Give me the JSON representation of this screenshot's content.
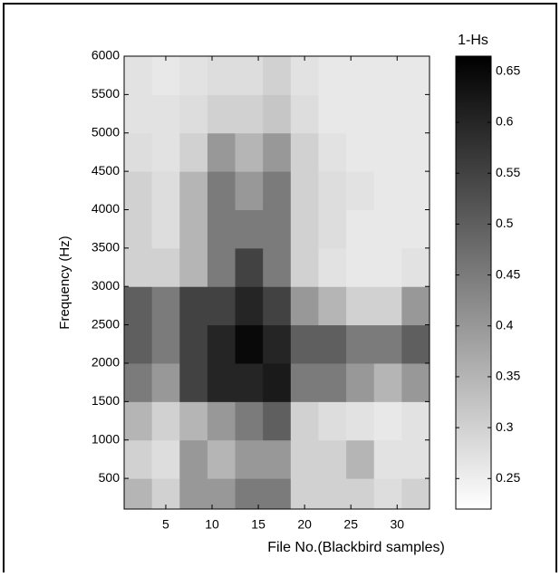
{
  "chart_data": {
    "type": "heatmap",
    "xlabel": "File No.(Blackbird samples)",
    "ylabel": "Frequency (Hz)",
    "colorbar_title": "1-Hs",
    "x": [
      2,
      5,
      8,
      11,
      14,
      17,
      20,
      23,
      26,
      29,
      32
    ],
    "y": [
      250,
      750,
      1250,
      1750,
      2250,
      2750,
      3250,
      3750,
      4250,
      4750,
      5250,
      5750
    ],
    "z": [
      [
        0.35,
        0.3,
        0.4,
        0.4,
        0.45,
        0.45,
        0.3,
        0.3,
        0.3,
        0.28,
        0.3
      ],
      [
        0.3,
        0.28,
        0.4,
        0.35,
        0.4,
        0.4,
        0.3,
        0.3,
        0.35,
        0.27,
        0.27
      ],
      [
        0.35,
        0.3,
        0.35,
        0.4,
        0.45,
        0.5,
        0.3,
        0.28,
        0.27,
        0.26,
        0.27
      ],
      [
        0.45,
        0.4,
        0.55,
        0.6,
        0.6,
        0.62,
        0.45,
        0.45,
        0.4,
        0.35,
        0.4
      ],
      [
        0.5,
        0.45,
        0.55,
        0.6,
        0.65,
        0.6,
        0.5,
        0.5,
        0.45,
        0.45,
        0.5
      ],
      [
        0.5,
        0.45,
        0.55,
        0.55,
        0.6,
        0.55,
        0.4,
        0.35,
        0.3,
        0.3,
        0.4
      ],
      [
        0.3,
        0.3,
        0.35,
        0.45,
        0.55,
        0.45,
        0.3,
        0.27,
        0.26,
        0.26,
        0.27
      ],
      [
        0.3,
        0.28,
        0.35,
        0.45,
        0.45,
        0.45,
        0.3,
        0.28,
        0.26,
        0.26,
        0.26
      ],
      [
        0.3,
        0.28,
        0.35,
        0.45,
        0.4,
        0.45,
        0.3,
        0.28,
        0.27,
        0.26,
        0.26
      ],
      [
        0.28,
        0.27,
        0.3,
        0.4,
        0.35,
        0.4,
        0.3,
        0.27,
        0.26,
        0.26,
        0.26
      ],
      [
        0.27,
        0.27,
        0.28,
        0.3,
        0.3,
        0.32,
        0.28,
        0.26,
        0.26,
        0.26,
        0.26
      ],
      [
        0.27,
        0.26,
        0.27,
        0.28,
        0.28,
        0.3,
        0.27,
        0.26,
        0.26,
        0.26,
        0.26
      ]
    ],
    "xlim": [
      0.5,
      33.5
    ],
    "xticks": [
      5,
      10,
      15,
      20,
      25,
      30
    ],
    "ylim": [
      100,
      6000
    ],
    "yticks": [
      500,
      1000,
      1500,
      2000,
      2500,
      3000,
      3500,
      4000,
      4500,
      5000,
      5500,
      6000
    ],
    "zlim": [
      0.22,
      0.665
    ],
    "zticks": [
      0.25,
      0.3,
      0.35,
      0.4,
      0.45,
      0.5,
      0.55,
      0.6,
      0.65
    ],
    "colorscale": [
      "#ffffff",
      "#000000"
    ]
  }
}
